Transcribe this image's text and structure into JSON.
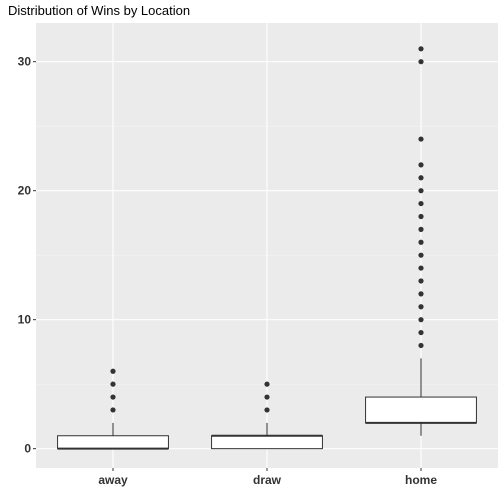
{
  "chart_data": {
    "type": "boxplot",
    "title": "Distribution of Wins by Location",
    "xlabel": "",
    "ylabel": "",
    "categories": [
      "away",
      "draw",
      "home"
    ],
    "ylim": [
      -1.5,
      33
    ],
    "y_ticks": [
      0,
      10,
      20,
      30
    ],
    "grid": true,
    "boxes": [
      {
        "category": "away",
        "min": 0,
        "q1": 0,
        "median": 0,
        "q3": 1,
        "max": 2,
        "outliers": [
          3,
          4,
          5,
          6
        ]
      },
      {
        "category": "draw",
        "min": 0,
        "q1": 0,
        "median": 1,
        "q3": 1,
        "max": 2,
        "outliers": [
          3,
          4,
          5
        ]
      },
      {
        "category": "home",
        "min": 1,
        "q1": 2,
        "median": 2,
        "q3": 4,
        "max": 7,
        "outliers": [
          8,
          9,
          10,
          11,
          12,
          13,
          14,
          15,
          16,
          17,
          18,
          19,
          20,
          21,
          22,
          24,
          30,
          31
        ]
      }
    ],
    "colors": {
      "panel_background": "#ebebeb",
      "grid_major": "#ffffff",
      "grid_minor": "#f5f5f5",
      "box_fill": "#ffffff",
      "box_stroke": "#333333",
      "outlier": "#333333"
    }
  }
}
